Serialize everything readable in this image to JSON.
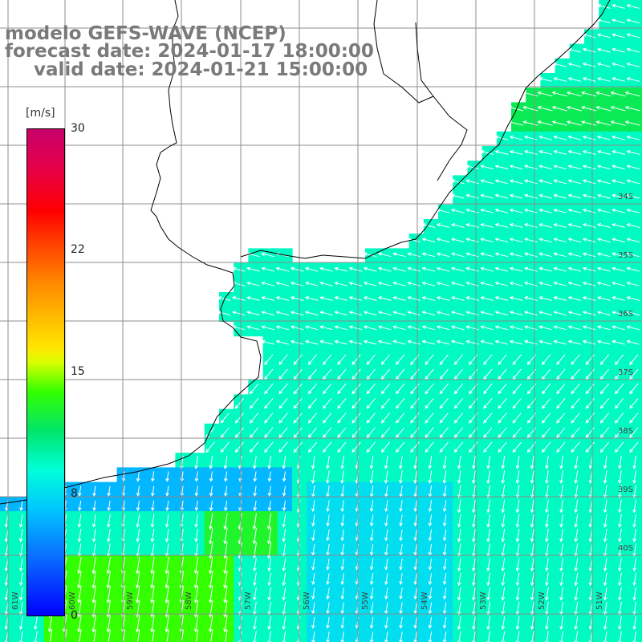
{
  "title": {
    "model": "modelo GEFS-WAVE (NCEP)",
    "forecast": "forecast date: 2024-01-17 18:00:00",
    "valid": "valid date: 2024-01-21 15:00:00"
  },
  "colorbar": {
    "unit": "[m/s]",
    "ticks": [
      "30",
      "22",
      "15",
      "8",
      "0"
    ],
    "tick_values": [
      30,
      22,
      15,
      8,
      0
    ],
    "range": [
      0,
      30
    ]
  },
  "axes": {
    "lat_labels": [
      "34S",
      "35S",
      "36S",
      "37S",
      "38S",
      "39S",
      "40S"
    ],
    "lon_labels": [
      "61W",
      "60W",
      "59W",
      "58W",
      "57W",
      "56W",
      "55W",
      "54W",
      "53W",
      "52W",
      "51W"
    ]
  },
  "colors": {
    "land": "#ffffff",
    "grid": "#8c8c8c",
    "coast": "#000000",
    "arrow": "#ffffff"
  }
}
